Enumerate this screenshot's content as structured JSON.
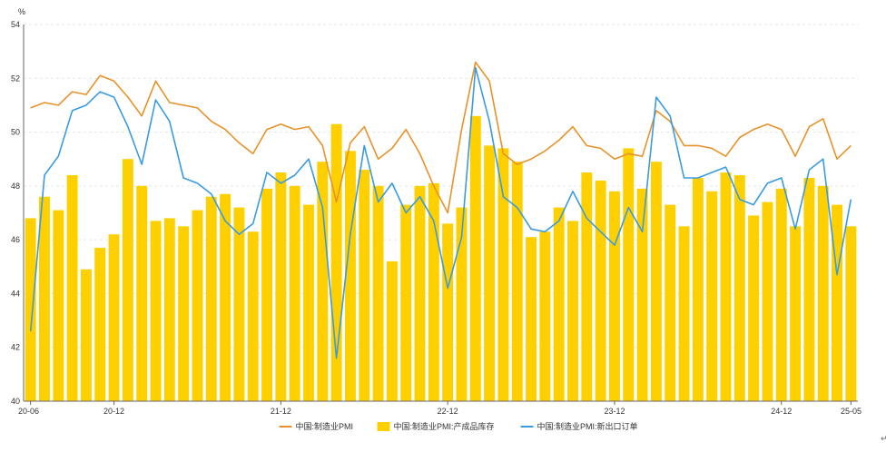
{
  "chart_data": {
    "type": "bar",
    "unit_label": "%",
    "y_range": [
      40,
      54
    ],
    "y_ticks": [
      "40",
      "42",
      "44",
      "46",
      "48",
      "50",
      "52",
      "54"
    ],
    "x_tick_labels": [
      "20-06",
      "20-12",
      "21-12",
      "22-12",
      "23-12",
      "24-12",
      "25-05"
    ],
    "x_tick_months": [
      "2020-06",
      "2020-12",
      "2021-12",
      "2022-12",
      "2023-12",
      "2024-12",
      "2025-05"
    ],
    "x": [
      "2020-06",
      "2020-07",
      "2020-08",
      "2020-09",
      "2020-10",
      "2020-11",
      "2020-12",
      "2021-01",
      "2021-02",
      "2021-03",
      "2021-04",
      "2021-05",
      "2021-06",
      "2021-07",
      "2021-08",
      "2021-09",
      "2021-10",
      "2021-11",
      "2021-12",
      "2022-01",
      "2022-02",
      "2022-03",
      "2022-04",
      "2022-05",
      "2022-06",
      "2022-07",
      "2022-08",
      "2022-09",
      "2022-10",
      "2022-11",
      "2022-12",
      "2023-01",
      "2023-02",
      "2023-03",
      "2023-04",
      "2023-05",
      "2023-06",
      "2023-07",
      "2023-08",
      "2023-09",
      "2023-10",
      "2023-11",
      "2023-12",
      "2024-01",
      "2024-02",
      "2024-03",
      "2024-04",
      "2024-05",
      "2024-06",
      "2024-07",
      "2024-08",
      "2024-09",
      "2024-10",
      "2024-11",
      "2024-12",
      "2025-01",
      "2025-02",
      "2025-03",
      "2025-04",
      "2025-05"
    ],
    "grid": true,
    "legend_position": "bottom-center",
    "series": [
      {
        "name": "中国:制造业PMI",
        "type": "line",
        "color": "#E8922A",
        "values": [
          50.9,
          51.1,
          51.0,
          51.5,
          51.4,
          52.1,
          51.9,
          51.3,
          50.6,
          51.9,
          51.1,
          51.0,
          50.9,
          50.4,
          50.1,
          49.6,
          49.2,
          50.1,
          50.3,
          50.1,
          50.2,
          49.5,
          47.4,
          49.6,
          50.2,
          49.0,
          49.4,
          50.1,
          49.2,
          48.0,
          47.0,
          50.1,
          52.6,
          51.9,
          49.2,
          48.8,
          49.0,
          49.3,
          49.7,
          50.2,
          49.5,
          49.4,
          49.0,
          49.2,
          49.1,
          50.8,
          50.4,
          49.5,
          49.5,
          49.4,
          49.1,
          49.8,
          50.1,
          50.3,
          50.1,
          49.1,
          50.2,
          50.5,
          49.0,
          49.5
        ]
      },
      {
        "name": "中国:制造业PMI:产成品库存",
        "type": "bar",
        "color": "#FFD000",
        "values": [
          46.8,
          47.6,
          47.1,
          48.4,
          44.9,
          45.7,
          46.2,
          49.0,
          48.0,
          46.7,
          46.8,
          46.5,
          47.1,
          47.6,
          47.7,
          47.2,
          46.3,
          47.9,
          48.5,
          48.0,
          47.3,
          48.9,
          50.3,
          49.3,
          48.6,
          48.0,
          45.2,
          47.3,
          48.0,
          48.1,
          46.6,
          47.2,
          50.6,
          49.5,
          49.4,
          48.9,
          46.1,
          46.3,
          47.2,
          46.7,
          48.5,
          48.2,
          47.8,
          49.4,
          47.9,
          48.9,
          47.3,
          46.5,
          48.3,
          47.8,
          48.5,
          48.4,
          46.9,
          47.4,
          47.9,
          46.5,
          48.3,
          48.0,
          47.3,
          46.5
        ]
      },
      {
        "name": "中国:制造业PMI:新出口订单",
        "type": "line",
        "color": "#3A9BE0",
        "values": [
          42.6,
          48.4,
          49.1,
          50.8,
          51.0,
          51.5,
          51.3,
          50.2,
          48.8,
          51.2,
          50.4,
          48.3,
          48.1,
          47.7,
          46.7,
          46.2,
          46.6,
          48.5,
          48.1,
          48.4,
          49.0,
          47.2,
          41.6,
          46.2,
          49.5,
          47.4,
          48.1,
          47.0,
          47.6,
          46.7,
          44.2,
          46.1,
          52.4,
          50.4,
          47.6,
          47.2,
          46.4,
          46.3,
          46.7,
          47.8,
          46.8,
          46.3,
          45.8,
          47.2,
          46.3,
          51.3,
          50.6,
          48.3,
          48.3,
          48.5,
          48.7,
          47.5,
          47.3,
          48.1,
          48.3,
          46.4,
          48.6,
          49.0,
          44.7,
          47.5
        ]
      }
    ]
  },
  "corner_mark": "↵",
  "colors": {
    "grid": "#E6E6E6",
    "axis": "#666666"
  }
}
